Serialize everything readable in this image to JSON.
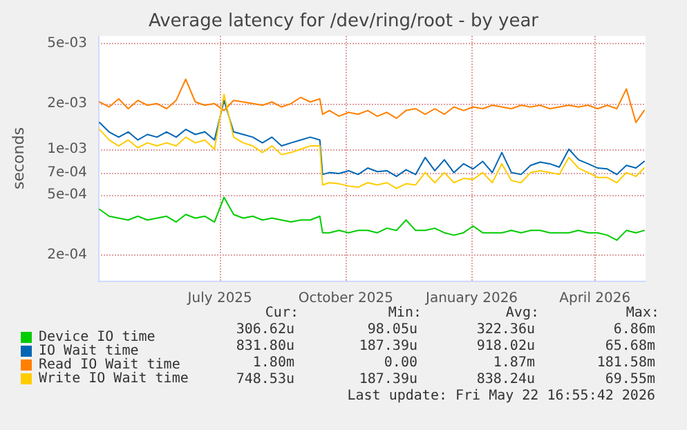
{
  "chart_data": {
    "type": "line",
    "title": "Average latency for /dev/ring/root - by year",
    "ylabel": "seconds",
    "x": [
      "2025-04-19",
      "2025-04-26",
      "2025-05-03",
      "2025-05-10",
      "2025-05-17",
      "2025-05-24",
      "2025-05-31",
      "2025-06-07",
      "2025-06-14",
      "2025-06-21",
      "2025-06-28",
      "2025-07-05",
      "2025-07-12",
      "2025-07-19",
      "2025-07-26",
      "2025-08-02",
      "2025-08-09",
      "2025-08-16",
      "2025-08-23",
      "2025-08-30",
      "2025-09-06",
      "2025-09-13",
      "2025-09-20",
      "2025-09-27",
      "2025-09-29",
      "2025-10-04",
      "2025-10-11",
      "2025-10-18",
      "2025-10-25",
      "2025-11-01",
      "2025-11-08",
      "2025-11-15",
      "2025-11-22",
      "2025-11-29",
      "2025-12-06",
      "2025-12-13",
      "2025-12-20",
      "2025-12-27",
      "2026-01-03",
      "2026-01-10",
      "2026-01-17",
      "2026-01-24",
      "2026-01-31",
      "2026-02-07",
      "2026-02-14",
      "2026-02-21",
      "2026-02-28",
      "2026-03-07",
      "2026-03-14",
      "2026-03-21",
      "2026-03-28",
      "2026-04-04",
      "2026-04-11",
      "2026-04-18",
      "2026-04-25",
      "2026-05-02",
      "2026-05-09",
      "2026-05-16",
      "2026-05-22"
    ],
    "series": [
      {
        "name": "Device IO time",
        "color": "#00cc00",
        "values": [
          0.0004,
          0.00036,
          0.00035,
          0.00034,
          0.00036,
          0.00034,
          0.00035,
          0.00036,
          0.00033,
          0.00037,
          0.00035,
          0.00036,
          0.00033,
          0.00048,
          0.00037,
          0.00035,
          0.00036,
          0.00034,
          0.00035,
          0.00034,
          0.00033,
          0.00034,
          0.00034,
          0.00036,
          0.00028,
          0.00028,
          0.00029,
          0.00028,
          0.00029,
          0.00029,
          0.00028,
          0.0003,
          0.00029,
          0.00034,
          0.00029,
          0.00029,
          0.0003,
          0.00028,
          0.00027,
          0.00028,
          0.00031,
          0.00028,
          0.00028,
          0.00028,
          0.00029,
          0.00028,
          0.00029,
          0.00029,
          0.00028,
          0.00028,
          0.00028,
          0.00029,
          0.00028,
          0.00028,
          0.00027,
          0.00025,
          0.00029,
          0.00028,
          0.00029
        ]
      },
      {
        "name": "IO Wait time",
        "color": "#0066b3",
        "values": [
          0.0015,
          0.0013,
          0.0012,
          0.0013,
          0.00115,
          0.00125,
          0.0012,
          0.0013,
          0.0012,
          0.00135,
          0.00125,
          0.0013,
          0.00115,
          0.0021,
          0.0013,
          0.00125,
          0.0012,
          0.0011,
          0.0012,
          0.00105,
          0.0011,
          0.00115,
          0.0012,
          0.00115,
          0.00068,
          0.0007,
          0.00069,
          0.00072,
          0.00068,
          0.00075,
          0.00071,
          0.00072,
          0.00066,
          0.00073,
          0.00068,
          0.00088,
          0.00072,
          0.00085,
          0.0007,
          0.0008,
          0.00074,
          0.00083,
          0.0007,
          0.00095,
          0.0007,
          0.00068,
          0.00078,
          0.00082,
          0.0008,
          0.00076,
          0.001,
          0.00085,
          0.0008,
          0.00075,
          0.00074,
          0.00068,
          0.00078,
          0.00075,
          0.00083
        ]
      },
      {
        "name": "Read IO Wait time",
        "color": "#ff8000",
        "values": [
          0.00205,
          0.0019,
          0.00215,
          0.00185,
          0.0021,
          0.00195,
          0.002,
          0.00185,
          0.0021,
          0.0029,
          0.00205,
          0.00195,
          0.002,
          0.0018,
          0.0021,
          0.00205,
          0.002,
          0.00195,
          0.00205,
          0.0019,
          0.002,
          0.0022,
          0.00205,
          0.00215,
          0.0017,
          0.0018,
          0.00165,
          0.00175,
          0.0017,
          0.0018,
          0.00165,
          0.00175,
          0.0016,
          0.0018,
          0.00185,
          0.0017,
          0.00185,
          0.0017,
          0.0019,
          0.0018,
          0.0019,
          0.00185,
          0.00195,
          0.0019,
          0.00185,
          0.00195,
          0.0019,
          0.00195,
          0.00185,
          0.0019,
          0.00195,
          0.0019,
          0.00195,
          0.00185,
          0.00195,
          0.00185,
          0.0025,
          0.0015,
          0.0018
        ]
      },
      {
        "name": "Write IO Wait time",
        "color": "#ffcc00",
        "values": [
          0.00135,
          0.00115,
          0.00105,
          0.00115,
          0.00102,
          0.0011,
          0.00105,
          0.0011,
          0.00105,
          0.0012,
          0.0011,
          0.00115,
          0.001,
          0.0023,
          0.0012,
          0.0011,
          0.00105,
          0.00095,
          0.00105,
          0.00092,
          0.00095,
          0.001,
          0.00105,
          0.00105,
          0.00058,
          0.0006,
          0.00059,
          0.00057,
          0.00056,
          0.0006,
          0.00058,
          0.0006,
          0.00055,
          0.00059,
          0.00058,
          0.0007,
          0.0006,
          0.0007,
          0.0006,
          0.00064,
          0.00063,
          0.0007,
          0.0006,
          0.0008,
          0.00062,
          0.0006,
          0.0007,
          0.00072,
          0.0007,
          0.00068,
          0.00088,
          0.00075,
          0.0007,
          0.00065,
          0.00065,
          0.0006,
          0.0007,
          0.00066,
          0.00075
        ]
      }
    ],
    "log": "y",
    "ylim": [
      0.000135,
      0.0056
    ],
    "yticks": [
      {
        "value": 0.005,
        "label": "5e-03"
      },
      {
        "value": 0.002,
        "label": "2e-03"
      },
      {
        "value": 0.001,
        "label": "1e-03"
      },
      {
        "value": 0.0007,
        "label": "7e-04"
      },
      {
        "value": 0.0005,
        "label": "5e-04"
      },
      {
        "value": 0.0002,
        "label": "2e-04"
      }
    ],
    "xlim": [
      "2025-04-18",
      "2026-05-23"
    ],
    "xticks": [
      {
        "value": "2025-07-16",
        "label": "July 2025"
      },
      {
        "value": "2025-10-16",
        "label": "October 2025"
      },
      {
        "value": "2026-01-16",
        "label": "January 2026"
      },
      {
        "value": "2026-04-16",
        "label": "April 2026"
      }
    ],
    "grid": true,
    "legend": "bottom",
    "marker": "none",
    "line_style": "solid",
    "annotations": [
      "Cur:",
      "Min:",
      "Avg:",
      "Max:",
      "306.62u",
      "98.05u",
      "322.36u",
      "6.86m",
      "831.80u",
      "187.39u",
      "918.02u",
      "65.68m",
      "1.80m",
      "0.00",
      "1.87m",
      "181.58m",
      "748.53u",
      "187.39u",
      "838.24u",
      "69.55m",
      "Last update: Fri May 22 16:55:42 2026"
    ]
  }
}
